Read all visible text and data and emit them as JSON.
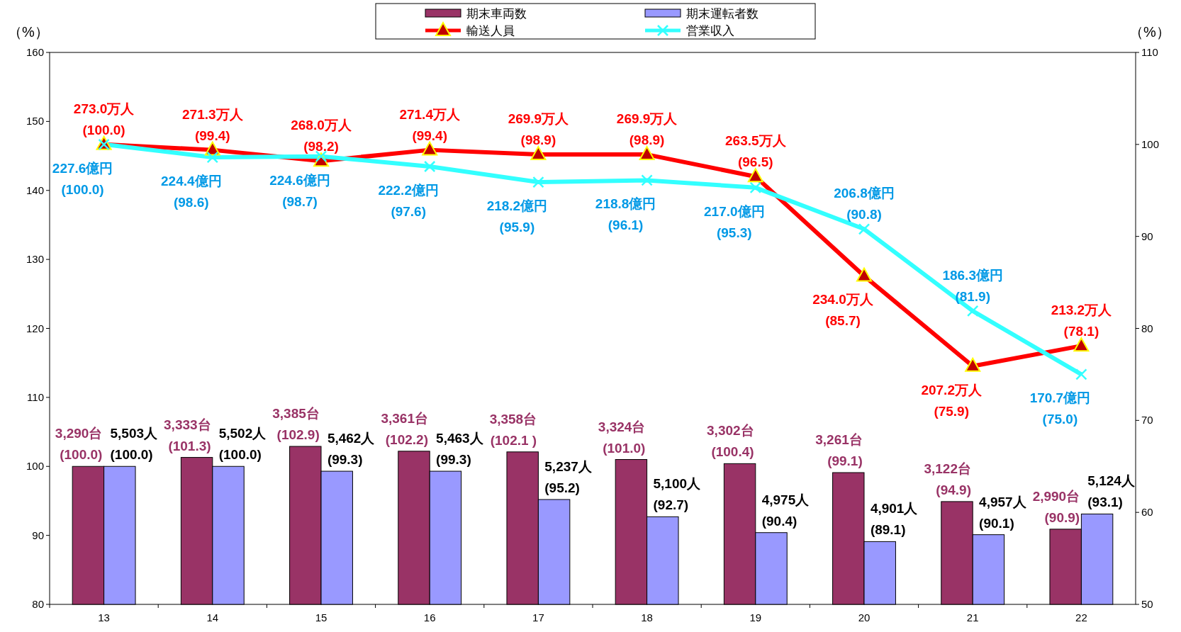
{
  "chart_data": {
    "type": "bar",
    "categories": [
      "13",
      "14",
      "15",
      "16",
      "17",
      "18",
      "19",
      "20",
      "21",
      "22"
    ],
    "ylabel": "（%）",
    "y2label": "（%）",
    "ylim": [
      80,
      160
    ],
    "yticks": [
      80,
      90,
      100,
      110,
      120,
      130,
      140,
      150,
      160
    ],
    "y2lim": [
      50,
      110
    ],
    "y2ticks": [
      50,
      60,
      70,
      80,
      90,
      100,
      110
    ],
    "legend": "top",
    "grid": false,
    "series": [
      {
        "name": "期末車両数",
        "color": "#993366",
        "values": [
          100.0,
          101.3,
          102.9,
          102.2,
          102.1,
          101.0,
          100.4,
          99.1,
          94.9,
          90.9
        ],
        "value_labels": [
          "3,290台\n(100.0)",
          "3,333台\n(101.3)",
          "3,385台\n(102.9)",
          "3,361台\n(102.2)",
          "3,358台\n(102.1 )",
          "3,324台\n(101.0)",
          "3,302台\n(100.4)",
          "3,261台\n(99.1)",
          "3,122台\n(94.9)",
          "2,990台\n(90.9)"
        ]
      },
      {
        "name": "期末運転者数",
        "color": "#9999ff",
        "values": [
          100.0,
          100.0,
          99.3,
          99.3,
          95.2,
          92.7,
          90.4,
          89.1,
          90.1,
          93.1
        ],
        "value_labels": [
          "5,503人\n(100.0)",
          "5,502人\n(100.0)",
          "5,462人\n(99.3)",
          "5,463人\n(99.3)",
          "5,237人\n(95.2)",
          "5,100人\n(92.7)",
          "4,975人\n(90.4)",
          "4,901人\n(89.1)",
          "4,957人\n(90.1)",
          "5,124人\n(93.1)"
        ]
      },
      {
        "name": "輸送人員",
        "type": "line",
        "axis": "y2",
        "marker": "triangle",
        "color": "#ff0000",
        "values": [
          100.0,
          99.4,
          98.2,
          99.4,
          98.9,
          98.9,
          96.5,
          85.7,
          75.9,
          78.1
        ],
        "value_labels": [
          "273.0万人\n(100.0)",
          "271.3万人\n(99.4)",
          "268.0万人\n(98.2)",
          "271.4万人\n(99.4)",
          "269.9万人\n(98.9)",
          "269.9万人\n(98.9)",
          "263.5万人\n(96.5)",
          "234.0万人\n(85.7)",
          "207.2万人\n(75.9)",
          "213.2万人\n(78.1)"
        ]
      },
      {
        "name": "営業収入",
        "type": "line",
        "axis": "y2",
        "marker": "cross",
        "color": "#33ffff",
        "values": [
          100.0,
          98.6,
          98.7,
          97.6,
          95.9,
          96.1,
          95.3,
          90.8,
          81.9,
          75.0
        ],
        "value_labels": [
          "227.6億円\n(100.0)",
          "224.4億円\n(98.6)",
          "224.6億円\n(98.7)",
          "222.2億円\n(97.6)",
          "218.2億円\n(95.9)",
          "218.8億円\n(96.1)",
          "217.0億円\n(95.3)",
          "206.8億円\n(90.8)",
          "186.3億円\n(81.9)",
          "170.7億円\n(75.0)"
        ]
      }
    ]
  }
}
